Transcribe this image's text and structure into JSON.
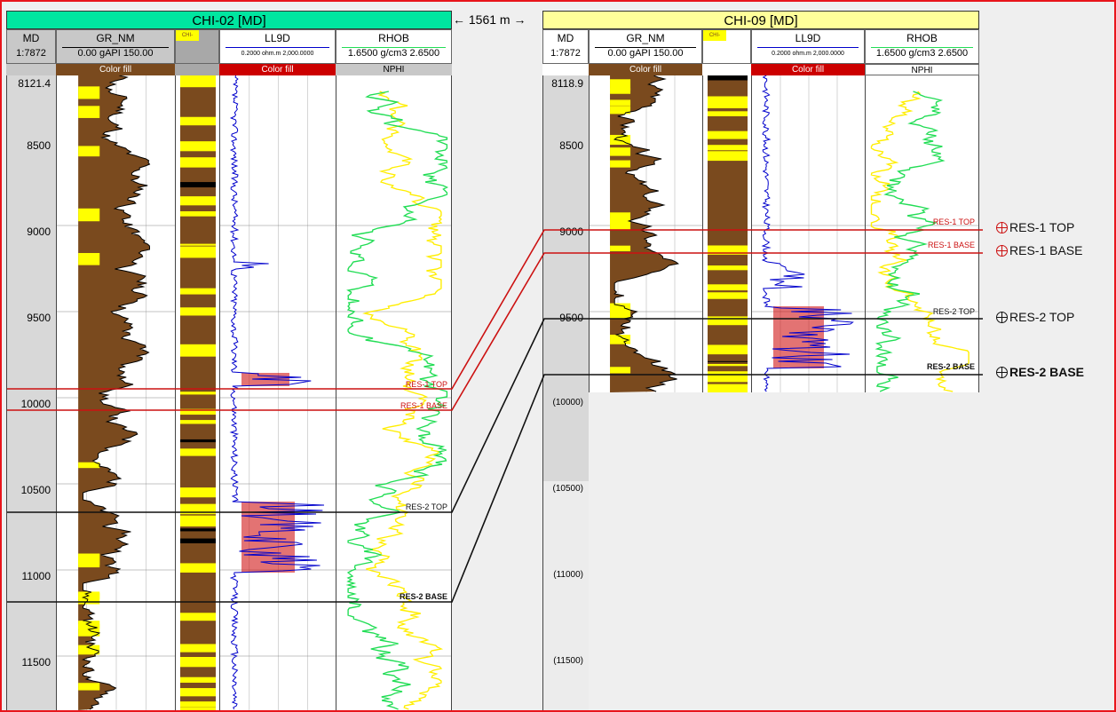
{
  "distance_label": "1561 m",
  "wells": [
    {
      "id": "chi02",
      "title": "CHI-02 [MD]",
      "title_color": "#00e6a0",
      "md_label": "MD",
      "md_scale": "1:7872",
      "gr_label": "GR_NM",
      "gr_scale": "0.00  gAPI  150.00",
      "litho_label": "CHI-LITHO",
      "ll9d_label": "LL9D",
      "ll9d_scale": "0.2000 ohm.m 2,000.0000",
      "rhob_label": "RHOB",
      "rhob_scale": "1.6500 g/cm3 2.6500",
      "gr_fill_label": "Color fill",
      "ll9d_fill_label": "Color fill",
      "nphi_label": "NPHI",
      "top_depth_label": "8121.4",
      "depth_labels": [
        "8500",
        "9000",
        "9500",
        "10000",
        "10500",
        "11000",
        "11500"
      ],
      "markers": [
        {
          "name": "RES-1 TOP",
          "color": "#cc1111"
        },
        {
          "name": "RES-1 BASE",
          "color": "#cc1111"
        },
        {
          "name": "RES-2 TOP",
          "color": "#111111"
        },
        {
          "name": "RES-2 BASE",
          "color": "#111111"
        }
      ]
    },
    {
      "id": "chi09",
      "title": "CHI-09 [MD]",
      "title_color": "#ffff9a",
      "md_label": "MD",
      "md_scale": "1:7872",
      "gr_label": "GR_NM",
      "gr_scale": "0.00  gAPI  150.00",
      "litho_label": "CHI-LITHO",
      "ll9d_label": "LL9D",
      "ll9d_scale": "0.2000 ohm.m 2,000.0000",
      "rhob_label": "RHOB",
      "rhob_scale": "1.6500 g/cm3 2.6500",
      "gr_fill_label": "Color fill",
      "ll9d_fill_label": "Color fill",
      "nphi_label": "NPHI",
      "top_depth_label": "8118.9",
      "depth_labels": [
        "8500",
        "9000",
        "9500",
        "(10000)",
        "(10500)",
        "(11000)",
        "(11500)"
      ],
      "markers": [
        {
          "name": "RES-1 TOP",
          "color": "#cc1111"
        },
        {
          "name": "RES-1 BASE",
          "color": "#cc1111"
        },
        {
          "name": "RES-2 TOP",
          "color": "#111111"
        },
        {
          "name": "RES-2 BASE",
          "color": "#111111"
        }
      ]
    }
  ],
  "correlation_markers": [
    {
      "name": "RES-1 TOP",
      "color": "#cc1111",
      "bold": false
    },
    {
      "name": "RES-1 BASE",
      "color": "#cc1111",
      "bold": false
    },
    {
      "name": "RES-2 TOP",
      "color": "#111111",
      "bold": false
    },
    {
      "name": "RES-2 BASE",
      "color": "#111111",
      "bold": true
    }
  ],
  "colors": {
    "frame": "#e8151b",
    "shale_fill": "#7a4a1e",
    "sand_fill": "#ffff00",
    "ll9d_curve": "#0000cc",
    "ll9d_fill": "#cc0000",
    "rhob_curve": "#22dd55",
    "nphi_curve": "#ffee00"
  }
}
